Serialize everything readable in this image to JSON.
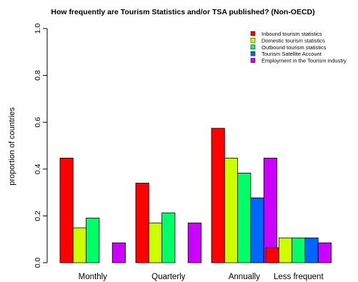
{
  "chart_data": {
    "type": "bar",
    "title": "How frequently are Tourism Statistics and/or TSA published? (Non-OECD)",
    "xlabel": "",
    "ylabel": "proportion of countries",
    "ylim": [
      0,
      1.0
    ],
    "yticks": [
      "0.0",
      "0.2",
      "0.4",
      "0.6",
      "0.8",
      "1.0"
    ],
    "grid": false,
    "legend_position": "top-right",
    "categories": [
      "Monthly",
      "Quarterly",
      "Annually",
      "Less frequent"
    ],
    "series": [
      {
        "name": "Inbound tourism statistics",
        "color": "#ff0000",
        "values": [
          0.447,
          0.34,
          0.574,
          0.064
        ]
      },
      {
        "name": "Domestic tourism statistics",
        "color": "#ccff00",
        "values": [
          0.149,
          0.17,
          0.447,
          0.106
        ]
      },
      {
        "name": "Outbound tourism statistics",
        "color": "#00ff66",
        "values": [
          0.191,
          0.213,
          0.383,
          0.106
        ]
      },
      {
        "name": "Tourism Satellite Account",
        "color": "#0066ff",
        "values": [
          0.0,
          0.0,
          0.277,
          0.106
        ]
      },
      {
        "name": "Employment in the Tourism industry",
        "color": "#cc00ff",
        "values": [
          0.085,
          0.17,
          0.447,
          0.085
        ]
      }
    ]
  }
}
